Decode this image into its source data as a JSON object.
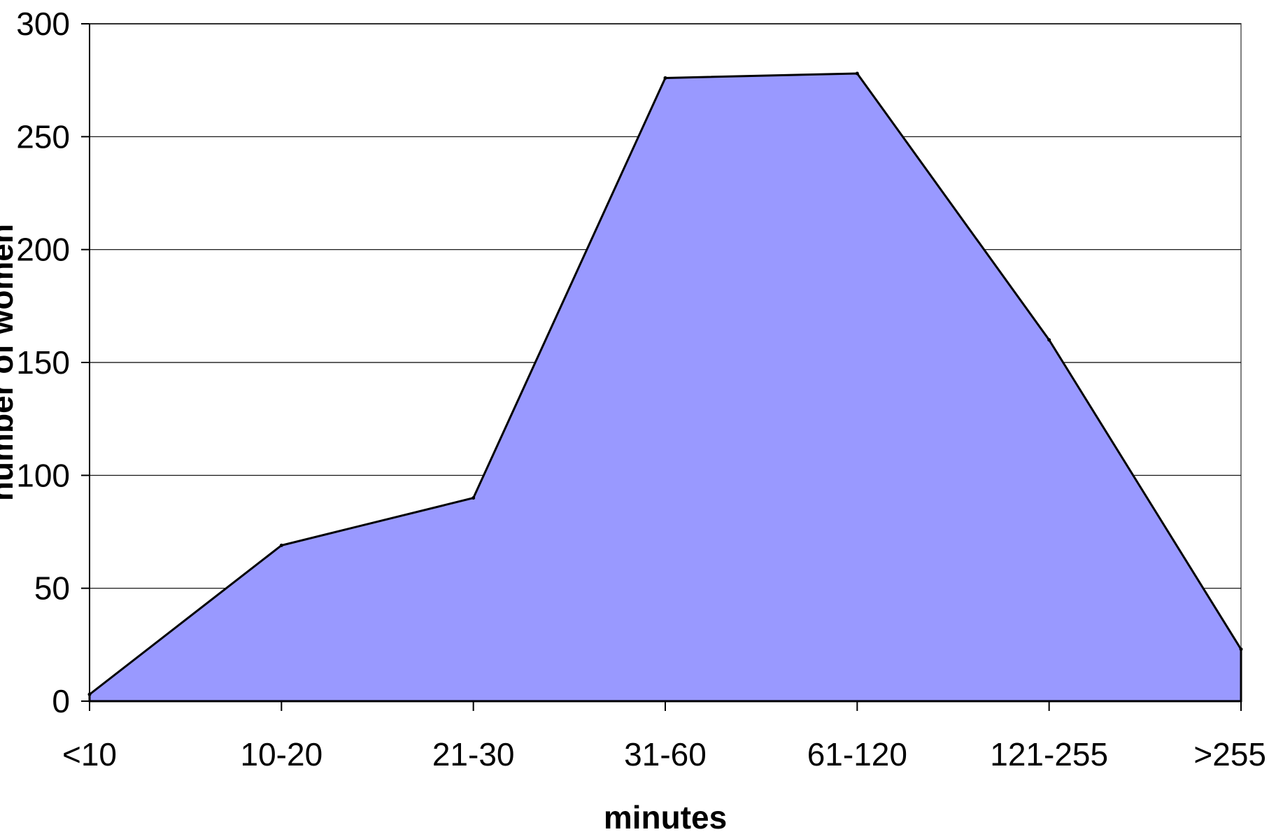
{
  "chart_data": {
    "type": "area",
    "categories": [
      "<10",
      "10-20",
      "21-30",
      "31-60",
      "61-120",
      "121-255",
      ">255"
    ],
    "values": [
      3,
      69,
      90,
      276,
      278,
      160,
      23
    ],
    "xlabel": "minutes",
    "ylabel": "number of women",
    "ylim": [
      0,
      300
    ],
    "yticks": [
      0,
      50,
      100,
      150,
      200,
      250,
      300
    ],
    "grid": true,
    "legend": "none",
    "colors": {
      "fill": "#9999ff",
      "outline": "#000000",
      "grid": "#000000",
      "axis": "#000000",
      "plot_border": "#808080"
    }
  }
}
